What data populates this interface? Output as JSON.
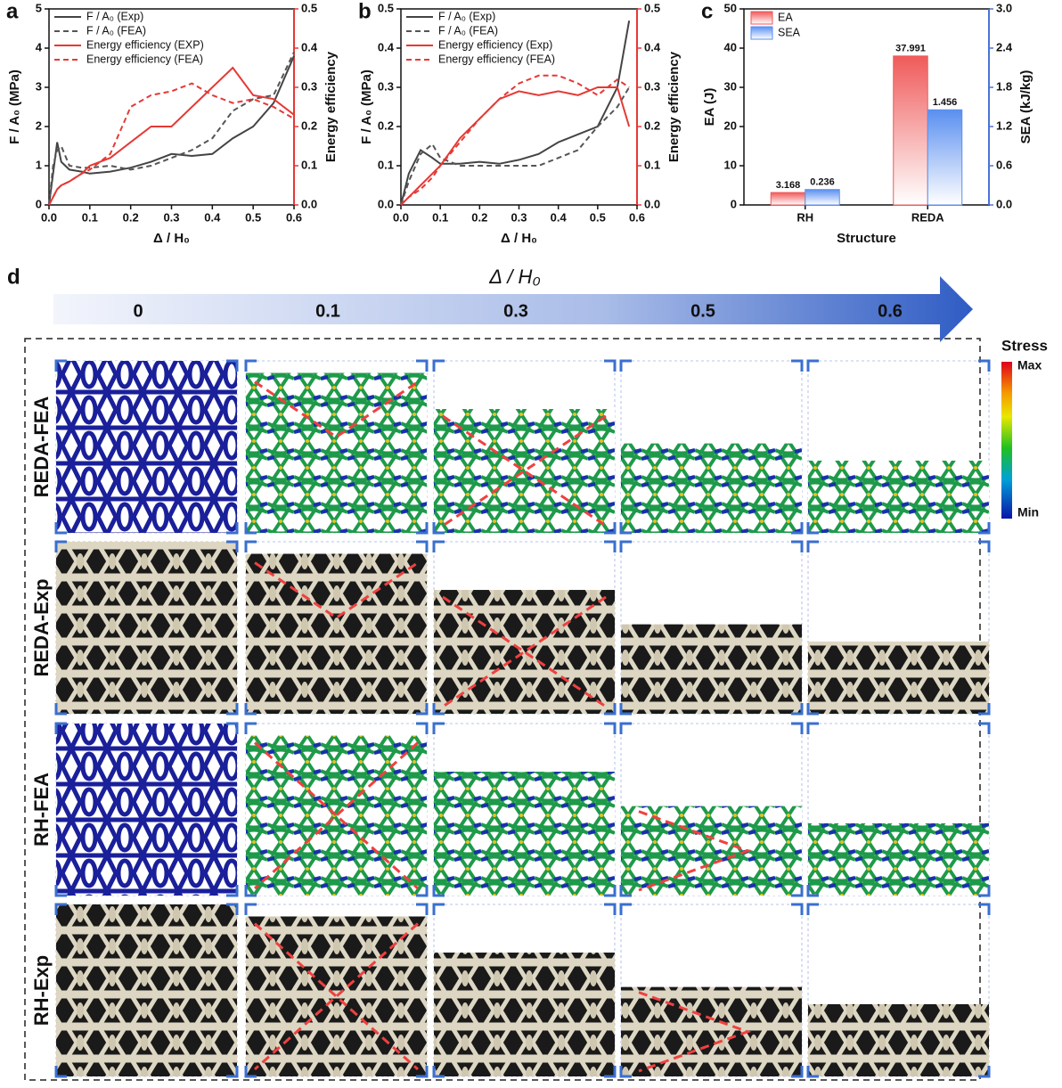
{
  "chart_data": [
    {
      "type": "line",
      "panel_label": "a",
      "xlabel": "Δ / H₀",
      "ylabel": "F / A₀ (MPa)",
      "y2label": "Energy efficiency",
      "y2_color": "#e53935",
      "xlim": [
        0,
        0.6
      ],
      "xticks": [
        {
          "value": 0,
          "label": "0.0"
        },
        0.1,
        0.2,
        0.3,
        0.4,
        0.5,
        0.6
      ],
      "ylim": [
        0,
        5
      ],
      "yticks": [
        0,
        1,
        2,
        3,
        4,
        5
      ],
      "y2lim": [
        0,
        0.5
      ],
      "y2ticks": [
        {
          "value": 0,
          "label": "0.0"
        },
        0.1,
        0.2,
        0.3,
        0.4,
        0.5
      ],
      "x": [
        0,
        0.01,
        0.02,
        0.03,
        0.05,
        0.08,
        0.1,
        0.15,
        0.2,
        0.25,
        0.3,
        0.35,
        0.4,
        0.45,
        0.5,
        0.55,
        0.6
      ],
      "series": [
        {
          "name": "F / A₀ (Exp)",
          "color": "#444444",
          "dash": false,
          "values": [
            0,
            0.8,
            1.6,
            1.1,
            0.9,
            0.85,
            0.8,
            0.85,
            0.95,
            1.1,
            1.3,
            1.25,
            1.3,
            1.7,
            2.0,
            2.6,
            3.8
          ]
        },
        {
          "name": "F / A₀ (FEA)",
          "color": "#555555",
          "dash": true,
          "values": [
            0,
            1.0,
            1.4,
            1.5,
            1.0,
            0.95,
            0.95,
            1.0,
            0.9,
            1.0,
            1.2,
            1.4,
            1.7,
            2.4,
            2.7,
            2.8,
            3.9
          ]
        },
        {
          "name": "Energy efficiency (EXP)",
          "color": "#e53935",
          "dash": false,
          "axis": "y2",
          "values": [
            0,
            0.02,
            0.04,
            0.05,
            0.06,
            0.08,
            0.1,
            0.12,
            0.16,
            0.2,
            0.2,
            0.25,
            0.3,
            0.35,
            0.28,
            0.27,
            0.23
          ]
        },
        {
          "name": "Energy efficiency (FEA)",
          "color": "#e53935",
          "dash": true,
          "axis": "y2",
          "values": [
            0,
            0.02,
            0.04,
            0.05,
            0.06,
            0.08,
            0.09,
            0.13,
            0.25,
            0.28,
            0.29,
            0.31,
            0.28,
            0.26,
            0.27,
            0.25,
            0.22
          ]
        }
      ]
    },
    {
      "type": "line",
      "panel_label": "b",
      "xlabel": "Δ / H₀",
      "ylabel": "F / A₀ (MPa)",
      "y2label": "Energy efficiency",
      "y2_color": "#e53935",
      "xlim": [
        0,
        0.6
      ],
      "xticks": [
        {
          "value": 0,
          "label": "0.0"
        },
        0.1,
        0.2,
        0.3,
        0.4,
        0.5,
        0.6
      ],
      "ylim": [
        0,
        0.5
      ],
      "yticks": [
        {
          "value": 0,
          "label": "0.0"
        },
        0.1,
        0.2,
        0.3,
        0.4,
        0.5
      ],
      "y2lim": [
        0,
        0.5
      ],
      "y2ticks": [
        {
          "value": 0,
          "label": "0.0"
        },
        0.1,
        0.2,
        0.3,
        0.4,
        0.5
      ],
      "x": [
        0,
        0.02,
        0.05,
        0.08,
        0.1,
        0.15,
        0.2,
        0.25,
        0.3,
        0.35,
        0.4,
        0.45,
        0.5,
        0.55,
        0.58
      ],
      "series": [
        {
          "name": "F / A₀ (Exp)",
          "color": "#444444",
          "dash": false,
          "values": [
            0,
            0.08,
            0.14,
            0.12,
            0.105,
            0.105,
            0.11,
            0.105,
            0.115,
            0.13,
            0.16,
            0.18,
            0.2,
            0.3,
            0.47
          ]
        },
        {
          "name": "F / A₀ (FEA)",
          "color": "#555555",
          "dash": true,
          "values": [
            0,
            0.06,
            0.13,
            0.155,
            0.12,
            0.1,
            0.1,
            0.1,
            0.1,
            0.1,
            0.12,
            0.14,
            0.2,
            0.25,
            0.3
          ]
        },
        {
          "name": "Energy efficiency (Exp)",
          "color": "#e53935",
          "dash": false,
          "axis": "y2",
          "values": [
            0,
            0.02,
            0.05,
            0.08,
            0.1,
            0.17,
            0.22,
            0.27,
            0.29,
            0.28,
            0.29,
            0.28,
            0.3,
            0.3,
            0.2
          ]
        },
        {
          "name": "Energy efficiency (FEA)",
          "color": "#e53935",
          "dash": true,
          "axis": "y2",
          "values": [
            0,
            0.02,
            0.04,
            0.07,
            0.1,
            0.16,
            0.22,
            0.27,
            0.31,
            0.33,
            0.33,
            0.31,
            0.28,
            0.32,
            0.3
          ]
        }
      ]
    },
    {
      "type": "bar",
      "panel_label": "c",
      "xlabel": "Structure",
      "ylabel": "EA (J)",
      "y2label": "SEA (kJ/kg)",
      "y_color": "#e53935",
      "y2_color": "#4a72d9",
      "categories": [
        "RH",
        "REDA"
      ],
      "ylim": [
        0,
        50
      ],
      "yticks": [
        0,
        10,
        20,
        30,
        40,
        50
      ],
      "y2lim": [
        0,
        3
      ],
      "y2ticks": [
        {
          "value": 0,
          "label": "0.0"
        },
        0.6,
        1.2,
        1.8,
        2.4,
        {
          "value": 3,
          "label": "3.0"
        }
      ],
      "series": [
        {
          "name": "EA",
          "color": "#f05a5a",
          "values": [
            3.168,
            37.991
          ]
        },
        {
          "name": "SEA",
          "color": "#5a8ff0",
          "axis": "y2",
          "values": [
            0.236,
            1.456
          ]
        }
      ]
    }
  ],
  "panel_d": {
    "panel_label": "d",
    "title": "Δ / H₀",
    "strains": [
      "0",
      "0.1",
      "0.3",
      "0.5",
      "0.6"
    ],
    "rows": [
      "REDA-FEA",
      "REDA-Exp",
      "RH-FEA",
      "RH-Exp"
    ],
    "colorbar": {
      "title": "Stress",
      "max": "Max",
      "min": "Min"
    }
  }
}
